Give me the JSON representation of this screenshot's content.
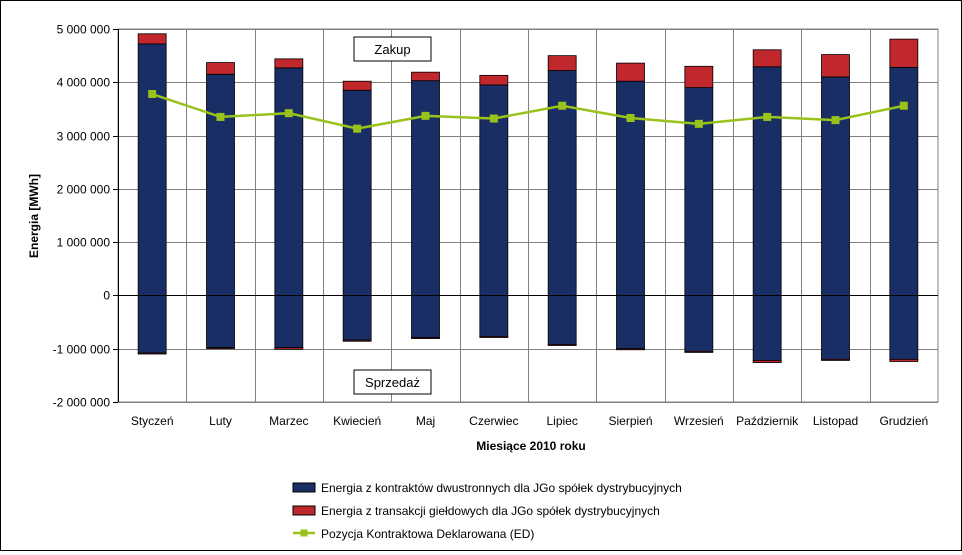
{
  "chart_data": {
    "type": "bar",
    "stacked": true,
    "categories": [
      "Styczeń",
      "Luty",
      "Marzec",
      "Kwiecień",
      "Maj",
      "Czerwiec",
      "Lipiec",
      "Sierpień",
      "Wrzesień",
      "Październik",
      "Listopad",
      "Grudzień"
    ],
    "ylabel": "Energia [MWh]",
    "xlabel": "Miesiące 2010  roku",
    "ylim": [
      -2000000,
      5000000
    ],
    "yticks": [
      5000000,
      4000000,
      3000000,
      2000000,
      1000000,
      0,
      -1000000,
      -2000000
    ],
    "ytick_labels": [
      "5 000 000",
      "4 000 000",
      "3 000 000",
      "2 000 000",
      "1 000 000",
      "0",
      "-1 000 000",
      "-2 000 000"
    ],
    "grid": true,
    "legend_position": "bottom",
    "annotations": {
      "upper": "Zakup",
      "lower": "Sprzedaż"
    },
    "series": [
      {
        "name": "Energia z kontraktów dwustronnych dla JGo spółek dystrybucyjnych",
        "color": "#1a2e66",
        "kind": "bar",
        "values_positive": [
          4720000,
          4150000,
          4270000,
          3850000,
          4030000,
          3950000,
          4220000,
          4020000,
          3900000,
          4290000,
          4100000,
          4280000
        ],
        "values_negative": [
          -1080000,
          -980000,
          -980000,
          -840000,
          -790000,
          -770000,
          -920000,
          -1000000,
          -1050000,
          -1220000,
          -1200000,
          -1200000
        ]
      },
      {
        "name": "Energia z transakcji giełdowych dla JGo spółek dystrybucyjnych",
        "color": "#c0282d",
        "kind": "bar",
        "values_positive": [
          190000,
          220000,
          170000,
          170000,
          160000,
          180000,
          280000,
          340000,
          400000,
          320000,
          420000,
          530000
        ],
        "values_negative": [
          -20000,
          -20000,
          -30000,
          -20000,
          -20000,
          -20000,
          -20000,
          -20000,
          -20000,
          -40000,
          -20000,
          -40000
        ]
      },
      {
        "name": "Pozycja Kontraktowa Deklarowana  (ED)",
        "color": "#99c31b",
        "kind": "line",
        "values": [
          3780000,
          3350000,
          3420000,
          3130000,
          3370000,
          3320000,
          3560000,
          3330000,
          3220000,
          3350000,
          3290000,
          3560000
        ]
      }
    ]
  }
}
